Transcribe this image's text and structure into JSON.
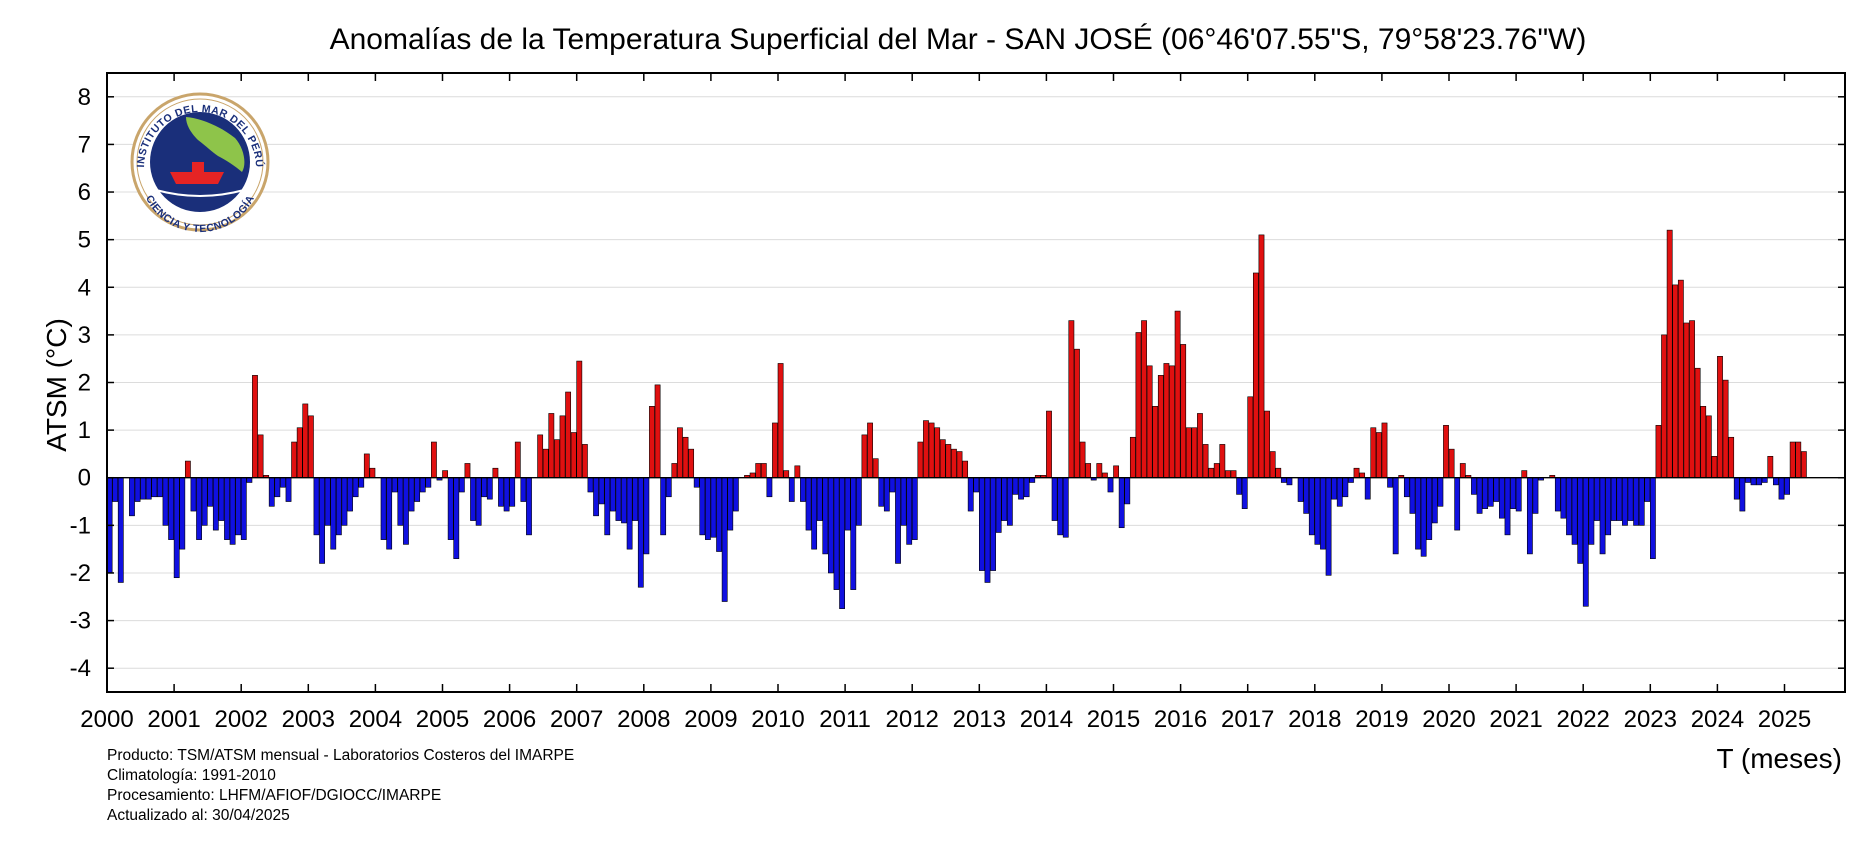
{
  "chart_data": {
    "type": "bar",
    "title": "Anomalías de la Temperatura Superficial del Mar - SAN JOSÉ (06°46'07.55\"S, 79°58'23.76\"W)",
    "xlabel": "T (meses)",
    "ylabel": "ATSM (°C)",
    "ylim": [
      -4.5,
      8.5
    ],
    "yticks": [
      8,
      7,
      6,
      5,
      4,
      3,
      2,
      1,
      0,
      -1,
      -2,
      -3,
      -4
    ],
    "xticks": [
      "2000",
      "2001",
      "2002",
      "2003",
      "2004",
      "2005",
      "2006",
      "2007",
      "2008",
      "2009",
      "2010",
      "2011",
      "2012",
      "2013",
      "2014",
      "2015",
      "2016",
      "2017",
      "2018",
      "2019",
      "2020",
      "2021",
      "2022",
      "2023",
      "2024",
      "2025"
    ],
    "grid": true,
    "positive_color": "#e01010",
    "negative_color": "#1010e0",
    "start": "2000-01",
    "end": "2025-04",
    "values": [
      -2.0,
      -0.5,
      -2.2,
      0.0,
      -0.8,
      -0.5,
      -0.45,
      -0.45,
      -0.4,
      -0.4,
      -1.0,
      -1.3,
      -2.1,
      -1.5,
      0.35,
      -0.7,
      -1.3,
      -1.0,
      -0.6,
      -1.1,
      -0.9,
      -1.3,
      -1.4,
      -1.2,
      -1.3,
      -0.1,
      2.15,
      0.9,
      0.05,
      -0.6,
      -0.4,
      -0.2,
      -0.5,
      0.75,
      1.05,
      1.55,
      1.3,
      -1.2,
      -1.8,
      -1.0,
      -1.5,
      -1.2,
      -1.0,
      -0.7,
      -0.4,
      -0.2,
      0.5,
      0.2,
      0.0,
      -1.3,
      -1.5,
      -0.3,
      -1.0,
      -1.4,
      -0.7,
      -0.5,
      -0.3,
      -0.2,
      0.75,
      -0.05,
      0.15,
      -1.3,
      -1.7,
      -0.3,
      0.3,
      -0.9,
      -1.0,
      -0.4,
      -0.45,
      0.2,
      -0.6,
      -0.7,
      -0.6,
      0.75,
      -0.5,
      -1.2,
      0.0,
      0.9,
      0.6,
      1.35,
      0.8,
      1.3,
      1.8,
      0.95,
      2.45,
      0.7,
      -0.3,
      -0.8,
      -0.55,
      -1.2,
      -0.7,
      -0.9,
      -0.95,
      -1.5,
      -0.9,
      -2.3,
      -1.6,
      1.5,
      1.95,
      -1.2,
      -0.4,
      0.3,
      1.05,
      0.85,
      0.6,
      -0.2,
      -1.2,
      -1.3,
      -1.25,
      -1.55,
      -2.6,
      -1.1,
      -0.7,
      0.0,
      0.05,
      0.1,
      0.3,
      0.3,
      -0.4,
      1.15,
      2.4,
      0.15,
      -0.5,
      0.25,
      -0.5,
      -1.1,
      -1.5,
      -0.9,
      -1.6,
      -2.0,
      -2.35,
      -2.75,
      -1.1,
      -2.35,
      -1.0,
      0.9,
      1.15,
      0.4,
      -0.6,
      -0.7,
      -0.3,
      -1.8,
      -1.0,
      -1.4,
      -1.3,
      0.75,
      1.2,
      1.15,
      1.05,
      0.8,
      0.7,
      0.6,
      0.55,
      0.35,
      -0.7,
      -0.3,
      -1.95,
      -2.2,
      -1.95,
      -1.15,
      -0.9,
      -1.0,
      -0.35,
      -0.45,
      -0.4,
      -0.1,
      0.05,
      0.05,
      1.4,
      -0.9,
      -1.2,
      -1.25,
      3.3,
      2.7,
      0.75,
      0.3,
      -0.05,
      0.3,
      0.1,
      -0.3,
      0.25,
      -1.05,
      -0.55,
      0.85,
      3.05,
      3.3,
      2.35,
      1.5,
      2.15,
      2.4,
      2.35,
      3.5,
      2.8,
      1.05,
      1.05,
      1.35,
      0.7,
      0.2,
      0.3,
      0.7,
      0.15,
      0.15,
      -0.35,
      -0.65,
      1.7,
      4.3,
      5.1,
      1.4,
      0.55,
      0.2,
      -0.1,
      -0.15,
      0.0,
      -0.5,
      -0.75,
      -1.2,
      -1.4,
      -1.5,
      -2.05,
      -0.45,
      -0.6,
      -0.4,
      -0.1,
      0.2,
      0.1,
      -0.45,
      1.05,
      0.95,
      1.15,
      -0.2,
      -1.6,
      0.05,
      -0.4,
      -0.75,
      -1.5,
      -1.65,
      -1.3,
      -0.95,
      -0.6,
      1.1,
      0.6,
      -1.1,
      0.3,
      0.05,
      -0.35,
      -0.75,
      -0.65,
      -0.6,
      -0.5,
      -0.85,
      -1.2,
      -0.65,
      -0.7,
      0.15,
      -1.6,
      -0.75,
      -0.05,
      0.0,
      0.05,
      -0.7,
      -0.85,
      -1.2,
      -1.4,
      -1.8,
      -2.7,
      -1.4,
      -0.9,
      -1.6,
      -1.2,
      -0.9,
      -0.9,
      -1.0,
      -0.9,
      -1.0,
      -1.0,
      -0.5,
      -1.7,
      1.1,
      3.0,
      5.2,
      4.05,
      4.15,
      3.25,
      3.3,
      2.3,
      1.5,
      1.3,
      0.45,
      2.55,
      2.05,
      0.85,
      -0.45,
      -0.7,
      -0.1,
      -0.15,
      -0.15,
      -0.1,
      0.45,
      -0.15,
      -0.45,
      -0.35,
      0.75,
      0.75,
      0.55
    ]
  },
  "logo": {
    "text_top": "INSTITUTO DEL MAR DEL PERÚ",
    "text_bottom": "CIENCIA Y TECNOLOGÍA"
  },
  "footer": {
    "line1": "Producto: TSM/ATSM mensual - Laboratorios Costeros del IMARPE",
    "line2": "Climatología: 1991-2010",
    "line3": "Procesamiento: LHFM/AFIOF/DGIOCC/IMARPE",
    "line4": "Actualizado al: 30/04/2025"
  }
}
